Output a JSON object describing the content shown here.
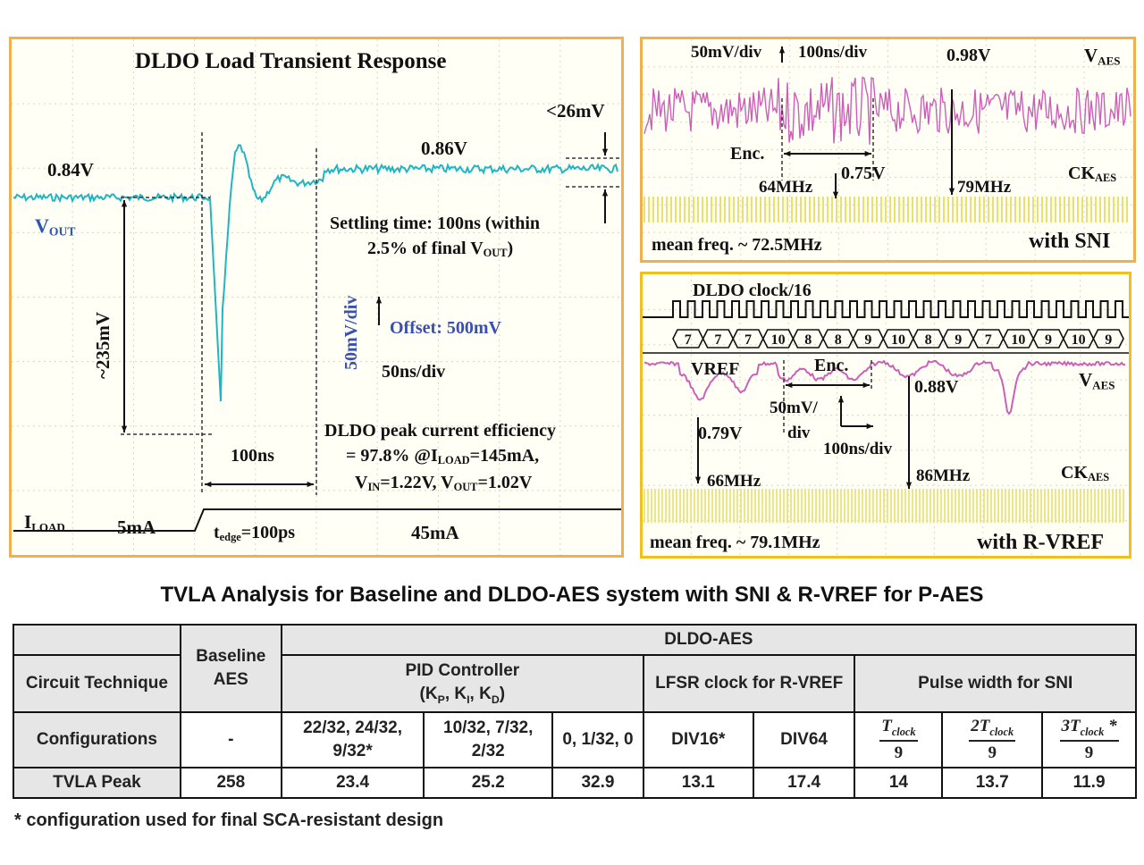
{
  "scope_left": {
    "title": "DLDO Load Transient Response",
    "v_before": "0.84V",
    "v_after": "0.86V",
    "ripple": "<26mV",
    "vout_label": "V",
    "vout_sub": "OUT",
    "settling_line1": "Settling time: 100ns (within",
    "settling_line2_a": "2.5% of final V",
    "settling_line2_sub": "OUT",
    "settling_line2_b": ")",
    "drop": "~235mV",
    "vscale": "50mV/div",
    "offset": "Offset: 500mV",
    "tscale": "50ns/div",
    "interval": "100ns",
    "eff_line1": "DLDO peak current efficiency",
    "eff_line2_a": "= 97.8% @I",
    "eff_line2_sub": "LOAD",
    "eff_line2_b": "=145mA,",
    "eff_line3_a": "V",
    "eff_line3_sub1": "IN",
    "eff_line3_b": "=1.22V, V",
    "eff_line3_sub2": "OUT",
    "eff_line3_c": "=1.02V",
    "iload_label": "I",
    "iload_sub": "LOAD",
    "i_before": "5mA",
    "tedge_a": "t",
    "tedge_sub": "edge",
    "tedge_b": "=100ps",
    "i_after": "45mA"
  },
  "scope_sni": {
    "vscale": "50mV/div",
    "tscale": "100ns/div",
    "level": "0.98V",
    "vaes": "V",
    "vaes_sub": "AES",
    "enc": "Enc.",
    "low": "0.75V",
    "f1": "64MHz",
    "f2": "79MHz",
    "ckaes": "CK",
    "ckaes_sub": "AES",
    "mean": "mean freq. ~ 72.5MHz",
    "label": "with SNI"
  },
  "scope_rvref": {
    "clock_label": "DLDO clock/16",
    "bus_values": [
      "7",
      "7",
      "7",
      "10",
      "8",
      "8",
      "9",
      "10",
      "8",
      "9",
      "7",
      "10",
      "9",
      "10",
      "9"
    ],
    "vref": "VREF",
    "enc": "Enc.",
    "level": "0.88V",
    "vaes": "V",
    "vaes_sub": "AES",
    "low": "0.79V",
    "vscale_1": "50mV/",
    "vscale_2": "div",
    "tscale": "100ns/div",
    "f1": "66MHz",
    "f2": "86MHz",
    "ckaes": "CK",
    "ckaes_sub": "AES",
    "mean": "mean freq. ~ 79.1MHz",
    "label": "with R-VREF"
  },
  "table": {
    "title": "TVLA Analysis for Baseline and DLDO-AES system with SNI & R-VREF for P-AES",
    "header_circuit": "Circuit Technique",
    "header_baseline": "Baseline AES",
    "header_dldo": "DLDO-AES",
    "header_pid_1": "PID Controller",
    "header_pid_2a": "(K",
    "header_pid_p": "P",
    "header_pid_2b": ", K",
    "header_pid_i": "I",
    "header_pid_2c": ", K",
    "header_pid_d": "D",
    "header_pid_2d": ")",
    "header_lfsr": "LFSR clock for R-VREF",
    "header_pulse": "Pulse width for SNI",
    "row_config_label": "Configurations",
    "config_baseline": "-",
    "config_pid1": "22/32, 24/32, 9/32*",
    "config_pid2": "10/32, 7/32, 2/32",
    "config_pid3": "0, 1/32, 0",
    "config_div16": "DIV16*",
    "config_div64": "DIV64",
    "config_p1_num_a": "T",
    "config_p1_num_sub": "clock",
    "config_p1_den": "9",
    "config_p2_num_a": "2T",
    "config_p2_num_sub": "clock",
    "config_p2_den": "9",
    "config_p3_num_a": "3T",
    "config_p3_num_sub": "clock",
    "config_p3_star": " *",
    "config_p3_den": "9",
    "row_tvla_label": "TVLA Peak",
    "tvla_values": [
      "258",
      "23.4",
      "25.2",
      "32.9",
      "13.1",
      "17.4",
      "14",
      "13.7",
      "11.9"
    ]
  },
  "footnote": "* configuration used for final SCA-resistant design",
  "colors": {
    "scope_border": "#f0b050",
    "trace_cyan": "#1fb5c4",
    "trace_magenta": "#cc60b8",
    "trace_yellow": "#e8e070",
    "grid": "#d8d8c8"
  }
}
